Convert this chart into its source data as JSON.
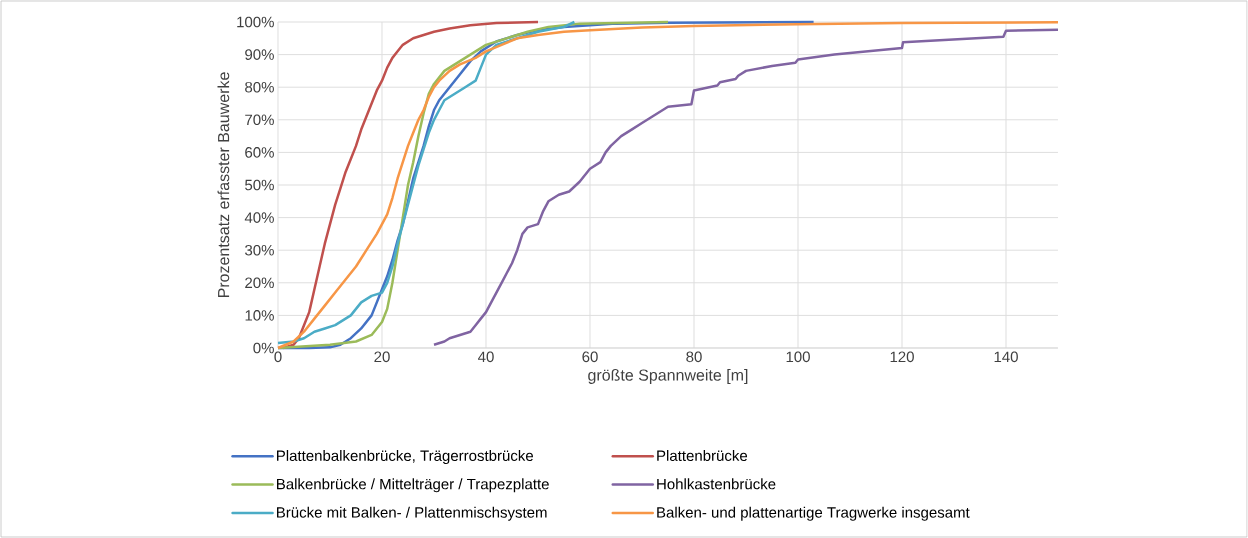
{
  "chart_data": {
    "type": "line",
    "xlabel": "größte Spannweite [m]",
    "ylabel": "Prozentsatz erfasster Bauwerke",
    "xlim": [
      0,
      150
    ],
    "xticks": [
      0,
      20,
      40,
      60,
      80,
      100,
      120,
      140
    ],
    "ylim": [
      0,
      100
    ],
    "yticks": [
      {
        "value": 0,
        "label": "0%"
      },
      {
        "value": 10,
        "label": "10%"
      },
      {
        "value": 20,
        "label": "20%"
      },
      {
        "value": 30,
        "label": "30%"
      },
      {
        "value": 40,
        "label": "40%"
      },
      {
        "value": 50,
        "label": "50%"
      },
      {
        "value": 60,
        "label": "60%"
      },
      {
        "value": 70,
        "label": "70%"
      },
      {
        "value": 80,
        "label": "80%"
      },
      {
        "value": 90,
        "label": "90%"
      },
      {
        "value": 100,
        "label": "100%"
      }
    ],
    "grid": true,
    "legend": "bottom",
    "marker": "none",
    "line_style": "solid",
    "series": [
      {
        "name": "Plattenbalkenbrücke, Trägerrostbrücke",
        "color": "#4472c4",
        "x": [
          0,
          6,
          10,
          12,
          14,
          16,
          18,
          19,
          20,
          21,
          22,
          23,
          24,
          25,
          26,
          27,
          28,
          29,
          30,
          31,
          33,
          35,
          37,
          39,
          42,
          46,
          50,
          55,
          65,
          75,
          103
        ],
        "values": [
          0,
          0,
          0.2,
          1,
          3,
          6,
          10,
          14,
          18,
          22,
          27,
          33,
          38,
          45,
          52,
          57,
          62,
          68,
          73,
          76,
          80,
          84,
          88,
          91,
          94,
          96,
          97.5,
          98.5,
          99.5,
          99.8,
          100
        ]
      },
      {
        "name": "Plattenbrücke",
        "color": "#c0504d",
        "x": [
          1,
          3,
          4,
          5,
          6,
          7,
          8,
          9,
          10,
          11,
          12,
          13,
          14,
          15,
          16,
          17,
          18,
          19,
          20,
          21,
          22,
          23,
          24,
          26,
          28,
          30,
          33,
          37,
          42,
          50
        ],
        "values": [
          0,
          1,
          3,
          7,
          11,
          18,
          25,
          32,
          38,
          44,
          49,
          54,
          58,
          62,
          67,
          71,
          75,
          79,
          82,
          86,
          89,
          91,
          93,
          95,
          96,
          97,
          98,
          99,
          99.7,
          100
        ]
      },
      {
        "name": "Balkenbrücke / Mittelträger / Trapezplatte",
        "color": "#9bbb59",
        "x": [
          0,
          10,
          15,
          18,
          20,
          21,
          22,
          23,
          24,
          25,
          26,
          27,
          28,
          29,
          30,
          32,
          34,
          36,
          38,
          40,
          44,
          48,
          52,
          58,
          75
        ],
        "values": [
          0,
          1,
          2,
          4,
          8,
          12,
          20,
          30,
          40,
          50,
          57,
          65,
          72,
          78,
          81,
          85,
          87,
          89,
          91,
          93,
          95,
          97,
          98.5,
          99.5,
          100
        ]
      },
      {
        "name": "Hohlkastenbrücke",
        "color": "#8064a2",
        "x": [
          30,
          32,
          33,
          35,
          37,
          38,
          39,
          40,
          41,
          42,
          43,
          44,
          45,
          46,
          47,
          48,
          50,
          51,
          52,
          54,
          56,
          58,
          60,
          62,
          63,
          64,
          66,
          68,
          70,
          72,
          75,
          79.5,
          80,
          84.5,
          85,
          88,
          88.5,
          90,
          95,
          99.5,
          100,
          107,
          120,
          120.2,
          139.5,
          140,
          150
        ],
        "values": [
          1,
          2,
          3,
          4,
          5,
          7,
          9,
          11,
          14,
          17,
          20,
          23,
          26,
          30,
          35,
          37,
          38,
          42,
          45,
          47,
          48,
          51,
          55,
          57,
          60,
          62,
          65,
          67,
          69,
          71,
          74,
          74.8,
          79,
          80.5,
          81.5,
          82.5,
          83.5,
          85,
          86.5,
          87.5,
          88.5,
          90,
          92,
          93.8,
          95.5,
          97.3,
          97.6
        ]
      },
      {
        "name": "Brücke mit Balken- / Plattenmischsystem",
        "color": "#4bacc6",
        "x": [
          0,
          3,
          5,
          7,
          9,
          11,
          13,
          14,
          16,
          18,
          20,
          21,
          22,
          23,
          24,
          25,
          26,
          27,
          28,
          29,
          30,
          31,
          32,
          34,
          36,
          38,
          39,
          40,
          42,
          46,
          50,
          55,
          57
        ],
        "values": [
          1.5,
          2,
          3,
          5,
          6,
          7,
          9,
          10,
          14,
          16,
          17,
          20,
          25,
          32,
          38,
          44,
          50,
          56,
          61,
          66,
          70,
          73,
          76,
          78,
          80,
          82,
          86,
          90,
          93,
          95,
          97,
          98.5,
          100
        ]
      },
      {
        "name": "Balken- und plattenartige Tragwerke insgesamt",
        "color": "#f79646",
        "x": [
          0,
          3,
          5,
          7,
          9,
          11,
          13,
          15,
          17,
          19,
          21,
          22,
          23,
          24,
          25,
          26,
          27,
          28,
          29,
          30,
          31,
          33,
          35,
          38,
          40,
          43,
          46,
          50,
          55,
          60,
          70,
          80,
          100,
          120,
          150
        ],
        "values": [
          0,
          2,
          5,
          9,
          13,
          17,
          21,
          25,
          30,
          35,
          41,
          46,
          52,
          57,
          62,
          66,
          70,
          73,
          77,
          80,
          82,
          85,
          87,
          89,
          91,
          93,
          95,
          96,
          97,
          97.5,
          98.3,
          98.8,
          99.3,
          99.7,
          99.9
        ]
      }
    ]
  }
}
